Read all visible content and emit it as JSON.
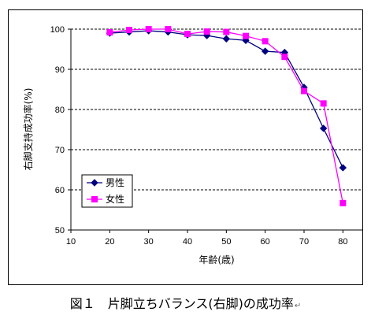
{
  "chart_data": {
    "type": "line",
    "xlabel": "年齢(歳)",
    "ylabel": "右脚支持成功率(%)",
    "xlim": [
      10,
      85
    ],
    "ylim": [
      50,
      100
    ],
    "xticks": [
      10,
      20,
      30,
      40,
      50,
      60,
      70,
      80
    ],
    "yticks": [
      50,
      60,
      70,
      80,
      90,
      100
    ],
    "grid": "horizontal dashed",
    "legend_position": "lower-left",
    "x": [
      20,
      25,
      30,
      35,
      40,
      45,
      50,
      55,
      60,
      65,
      70,
      75,
      80
    ],
    "series": [
      {
        "name": "男性",
        "color": "#000080",
        "marker": "diamond",
        "values": [
          99.0,
          99.3,
          99.6,
          99.3,
          98.6,
          98.4,
          97.6,
          97.2,
          94.5,
          94.2,
          85.5,
          75.3,
          65.5
        ]
      },
      {
        "name": "女性",
        "color": "#ff00ff",
        "marker": "square",
        "values": [
          99.2,
          99.8,
          100.0,
          100.0,
          98.8,
          99.4,
          99.3,
          98.3,
          97.0,
          93.1,
          84.6,
          81.5,
          56.7
        ]
      }
    ]
  },
  "caption": {
    "text": "図１　片脚立ちバランス(右脚)の成功率",
    "mark": "↵"
  }
}
